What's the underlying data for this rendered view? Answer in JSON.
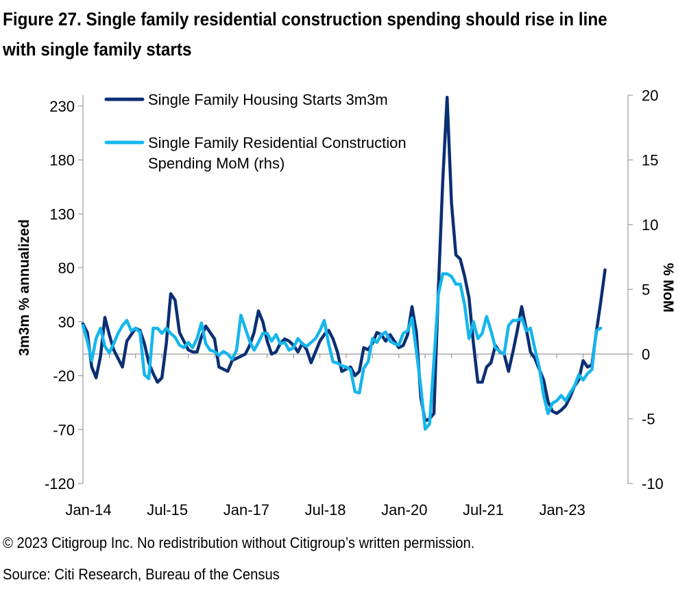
{
  "title": "Figure 27. Single family residential construction spending should rise in line with single family starts",
  "copyright": "© 2023 Citigroup Inc. No redistribution without Citigroup’s written permission.",
  "source": "Source: Citi Research, Bureau of the Census",
  "chart_data": {
    "type": "line",
    "xlabel": "",
    "ylabel": "3m3m % annualized",
    "y2label": "% MoM",
    "x_start": "Jan-14",
    "x_tick_labels": [
      "Jan-14",
      "Jul-15",
      "Jan-17",
      "Jul-18",
      "Jan-20",
      "Jul-21",
      "Jan-23"
    ],
    "ylim": [
      -120,
      240
    ],
    "yticks": [
      -120,
      -70,
      -20,
      30,
      80,
      130,
      180,
      230
    ],
    "y2lim": [
      -10,
      20
    ],
    "y2ticks": [
      -10,
      -5,
      0,
      5,
      10,
      15,
      20
    ],
    "grid": false,
    "legend_position": "top-left",
    "series": [
      {
        "name": "Single Family Housing Starts 3m3m",
        "axis": "left",
        "color": "#0b2f73",
        "values": [
          28,
          20,
          -12,
          -22,
          -2,
          34,
          18,
          4,
          -4,
          -12,
          12,
          18,
          24,
          22,
          10,
          -8,
          -18,
          -26,
          -22,
          10,
          56,
          50,
          20,
          12,
          4,
          2,
          2,
          16,
          26,
          20,
          14,
          -12,
          -14,
          -16,
          -6,
          -4,
          -2,
          0,
          8,
          20,
          40,
          30,
          12,
          0,
          2,
          10,
          14,
          12,
          8,
          2,
          10,
          4,
          -8,
          2,
          12,
          18,
          22,
          14,
          2,
          -16,
          -14,
          -12,
          -20,
          -16,
          6,
          4,
          10,
          20,
          18,
          12,
          18,
          12,
          6,
          8,
          18,
          44,
          20,
          -40,
          -62,
          -60,
          -55,
          60,
          160,
          238,
          140,
          92,
          88,
          72,
          52,
          10,
          -26,
          -26,
          -12,
          -8,
          8,
          2,
          0,
          -16,
          2,
          22,
          44,
          24,
          2,
          -4,
          -14,
          -24,
          -44,
          -53,
          -55,
          -52,
          -48,
          -40,
          -30,
          -24,
          -6,
          -12,
          -10,
          20,
          48,
          78
        ]
      },
      {
        "name": "Single Family Residential Construction Spending MoM (rhs)",
        "axis": "right",
        "color": "#15b6ec",
        "values": [
          2.2,
          1.0,
          -0.5,
          1.2,
          2.0,
          0.6,
          0.1,
          0.8,
          1.6,
          2.2,
          2.6,
          1.8,
          2.0,
          1.7,
          -1.6,
          -1.9,
          2.0,
          2.0,
          1.6,
          2.0,
          1.6,
          1.3,
          0.7,
          0.5,
          0.9,
          0.5,
          1.2,
          2.4,
          0.8,
          0.3,
          0.2,
          -0.1,
          0.2,
          0.0,
          -0.4,
          0.3,
          3.0,
          2.0,
          1.0,
          0.3,
          0.9,
          1.6,
          1.6,
          1.0,
          1.5,
          0.8,
          0.9,
          0.3,
          0.5,
          1.2,
          0.8,
          0.6,
          0.9,
          1.2,
          1.8,
          2.6,
          0.8,
          -0.6,
          -0.7,
          -0.9,
          -1.0,
          -1.2,
          -2.9,
          -3.0,
          -1.1,
          -0.6,
          1.2,
          0.9,
          1.5,
          1.7,
          1.0,
          0.8,
          0.7,
          1.6,
          1.8,
          2.8,
          0.2,
          -2.5,
          -5.8,
          -5.4,
          -0.5,
          4.6,
          6.2,
          6.2,
          6.0,
          5.4,
          5.4,
          3.8,
          1.2,
          2.5,
          1.2,
          1.6,
          2.9,
          1.8,
          0.5,
          0.2,
          0.0,
          2.2,
          2.6,
          2.6,
          2.8,
          1.8,
          2.0,
          0.4,
          -1.0,
          -3.2,
          -4.6,
          -3.8,
          -3.6,
          -3.2,
          -3.6,
          -3.0,
          -2.5,
          -1.6,
          -2.0,
          -1.5,
          -1.2,
          1.8,
          2.0
        ]
      }
    ]
  }
}
